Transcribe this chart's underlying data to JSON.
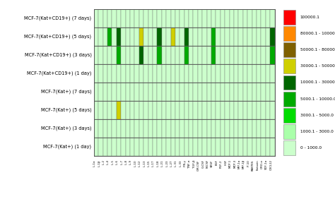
{
  "row_labels": [
    "MCF-7(Kat+) (1 day)",
    "MCF-7(Kat+) (3 days)",
    "MCF-7(Kat+) (5 days)",
    "MCF-7(Kat+) (7 days)",
    "MCF-7(Kat+CD19+) (1 day)",
    "MCF-7(Kat+CD19+) (3 days)",
    "MCF-7(Kat+CD19+) (5 days)",
    "MCF-7(Kat+CD19+) (7 days)"
  ],
  "n_cols": 40,
  "n_rows": 8,
  "figsize": [
    4.74,
    3.16
  ],
  "dpi": 100,
  "background_color": "#ffffff",
  "grid_color": "#666666",
  "default_value": 300,
  "boundaries": [
    0,
    1000,
    3000,
    5000,
    10000,
    30000,
    50000,
    80000,
    100000,
    200000
  ],
  "cell_colors": [
    "#ccffcc",
    "#aaffaa",
    "#00dd00",
    "#00aa00",
    "#006600",
    "#cfcf00",
    "#7f6000",
    "#ff8800",
    "#ff0000"
  ],
  "legend_labels": [
    "100000.1",
    "80000.1 - 100000.0",
    "50000.1 - 80000.0",
    "30000.1 - 50000.0",
    "10000.1 - 30000.0",
    "5000.1 - 10000.0",
    "3000.1 - 5000.0",
    "1000.1 - 3000.0",
    "0 - 1000.0"
  ],
  "legend_colors": [
    "#ff0000",
    "#ff8800",
    "#7f6000",
    "#cfcf00",
    "#006600",
    "#00aa00",
    "#00dd00",
    "#aaffaa",
    "#ccffcc"
  ],
  "hot_cells": [
    {
      "row": 2,
      "col": 5,
      "value": 35000
    },
    {
      "row": 5,
      "col": 5,
      "value": 7000
    },
    {
      "row": 5,
      "col": 10,
      "value": 12000
    },
    {
      "row": 5,
      "col": 14,
      "value": 7000
    },
    {
      "row": 5,
      "col": 20,
      "value": 7000
    },
    {
      "row": 5,
      "col": 26,
      "value": 7000
    },
    {
      "row": 5,
      "col": 39,
      "value": 7000
    },
    {
      "row": 6,
      "col": 3,
      "value": 7000
    },
    {
      "row": 6,
      "col": 5,
      "value": 22000
    },
    {
      "row": 6,
      "col": 10,
      "value": 35000
    },
    {
      "row": 6,
      "col": 14,
      "value": 12000
    },
    {
      "row": 6,
      "col": 17,
      "value": 35000
    },
    {
      "row": 6,
      "col": 20,
      "value": 12000
    },
    {
      "row": 6,
      "col": 26,
      "value": 7000
    },
    {
      "row": 6,
      "col": 39,
      "value": 22000
    }
  ],
  "cytokine_labels": [
    "IL-1α",
    "IL-1β",
    "IL-2",
    "IL-4",
    "IL-5",
    "IL-6",
    "IL-7",
    "IL-8",
    "IL-9",
    "IL-10",
    "IL-12",
    "IL-13",
    "IL-15",
    "IL-17",
    "IL-18",
    "IL-21",
    "IL-23",
    "IL-27",
    "IL-31",
    "IL-33",
    "IFN-γ",
    "TNF-α",
    "TGF-β",
    "GM-CSF",
    "G-CSF",
    "M-CSF",
    "VEGF",
    "EGF",
    "FGF-2",
    "HGF",
    "MCP-1",
    "MCP-3",
    "MIP-1α",
    "MIP-1β",
    "IP-10",
    "RANTES",
    "Eotaxin",
    "GRO-α",
    "SDF-1α",
    "CXCL12"
  ]
}
